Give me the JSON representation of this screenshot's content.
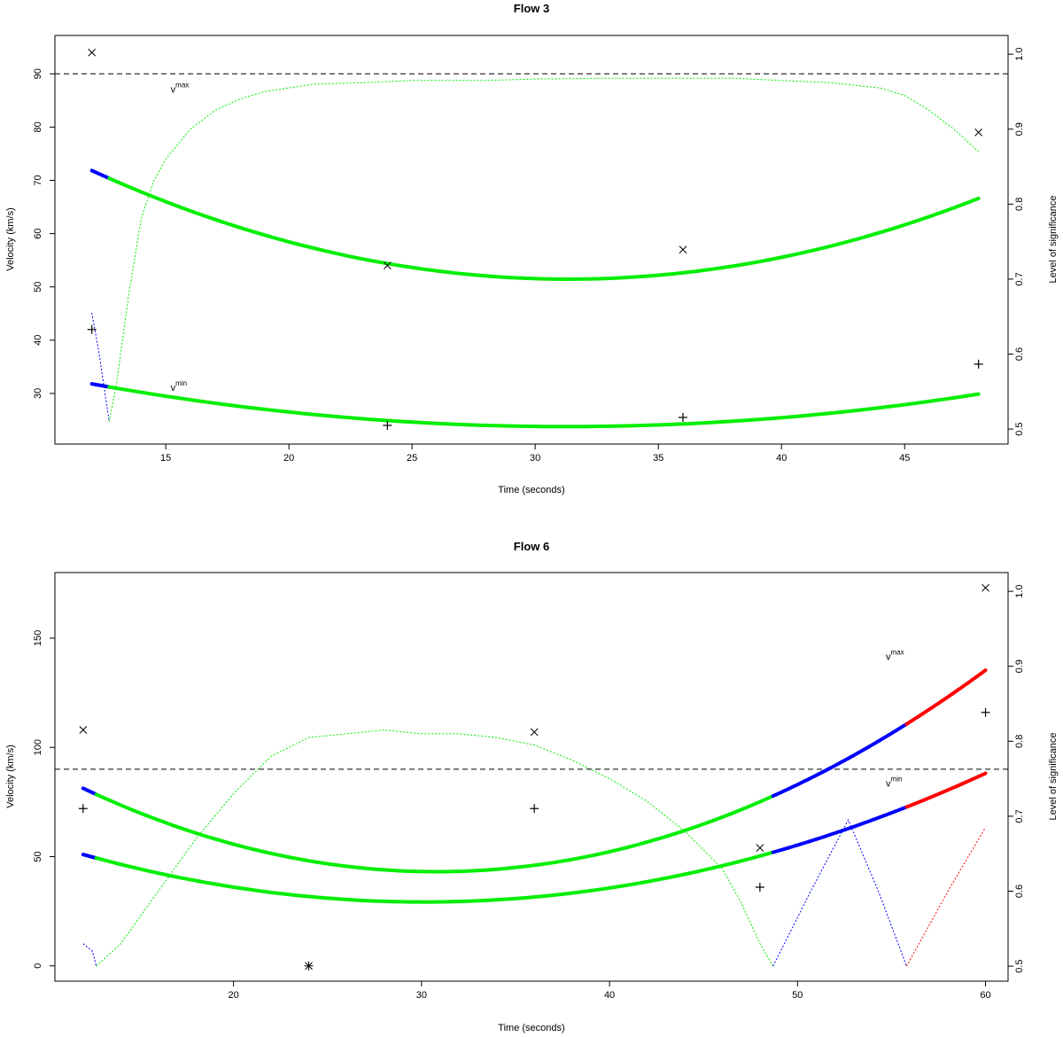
{
  "chart_data": [
    {
      "type": "line",
      "title": "Flow 3",
      "xlabel": "Time (seconds)",
      "ylabel": "Velocity (km/s)",
      "y2label": "Level of significance",
      "xlim": [
        10.5,
        49.2
      ],
      "ylim": [
        20.5,
        97.2
      ],
      "y2lim": [
        0.48,
        1.025
      ],
      "xticks": [
        15,
        20,
        25,
        30,
        35,
        40,
        45
      ],
      "yticks": [
        30,
        40,
        50,
        60,
        70,
        80,
        90
      ],
      "y2ticks": [
        0.5,
        0.6,
        0.7,
        0.8,
        0.9,
        1.0
      ],
      "y2ticklabels": [
        "0.5",
        "0.6",
        "0.7",
        "0.8",
        "0.9",
        "1.0"
      ],
      "hline": 90,
      "grid": false,
      "annotations": [
        {
          "base": "v",
          "sup": "max",
          "x": 15.2,
          "y": 86.5
        },
        {
          "base": "v",
          "sup": "min",
          "x": 15.2,
          "y": 30.5
        }
      ],
      "series": [
        {
          "kind": "vmax",
          "coef": [
            0.05455,
            -3.4182,
            105.0
          ],
          "x_range": [
            12,
            48
          ],
          "width": 4,
          "segments": [
            {
              "from": 12,
              "to": 12.7,
              "color": "#0000ff"
            },
            {
              "from": 12.7,
              "to": 48,
              "color": "#00ee00"
            }
          ]
        },
        {
          "kind": "vmin",
          "coef": [
            0.02168,
            -1.3539,
            44.92
          ],
          "x_range": [
            12,
            48
          ],
          "width": 4,
          "segments": [
            {
              "from": 12,
              "to": 12.7,
              "color": "#0000ff"
            },
            {
              "from": 12.7,
              "to": 48,
              "color": "#00ee00"
            }
          ]
        },
        {
          "kind": "significance",
          "style": "dotted",
          "axis": "right",
          "segments": [
            {
              "color": "#0000ff",
              "points": [
                [
                  12,
                  0.655
                ],
                [
                  12.3,
                  0.6
                ],
                [
                  12.7,
                  0.51
                ]
              ]
            },
            {
              "color": "#00ee00",
              "points": [
                [
                  12.7,
                  0.51
                ],
                [
                  13,
                  0.56
                ],
                [
                  13.5,
                  0.68
                ],
                [
                  14,
                  0.78
                ],
                [
                  14.5,
                  0.83
                ],
                [
                  15,
                  0.86
                ],
                [
                  16,
                  0.9
                ],
                [
                  17,
                  0.925
                ],
                [
                  18,
                  0.94
                ],
                [
                  19,
                  0.95
                ],
                [
                  20,
                  0.955
                ],
                [
                  21,
                  0.96
                ],
                [
                  23,
                  0.962
                ],
                [
                  25,
                  0.965
                ],
                [
                  28,
                  0.965
                ],
                [
                  30,
                  0.967
                ],
                [
                  33,
                  0.968
                ],
                [
                  36,
                  0.968
                ],
                [
                  38,
                  0.968
                ],
                [
                  40,
                  0.965
                ],
                [
                  42,
                  0.962
                ],
                [
                  44,
                  0.955
                ],
                [
                  45,
                  0.945
                ],
                [
                  46,
                  0.925
                ],
                [
                  47,
                  0.9
                ],
                [
                  48,
                  0.87
                ]
              ]
            }
          ]
        }
      ],
      "points": [
        {
          "marker": "x",
          "x": 12,
          "y": 94
        },
        {
          "marker": "x",
          "x": 24,
          "y": 54
        },
        {
          "marker": "x",
          "x": 36,
          "y": 57
        },
        {
          "marker": "x",
          "x": 48,
          "y": 79
        },
        {
          "marker": "+",
          "x": 12,
          "y": 42
        },
        {
          "marker": "+",
          "x": 24,
          "y": 24
        },
        {
          "marker": "+",
          "x": 36,
          "y": 25.5
        },
        {
          "marker": "+",
          "x": 48,
          "y": 35.5
        }
      ]
    },
    {
      "type": "line",
      "title": "Flow 6",
      "xlabel": "Time (seconds)",
      "ylabel": "Velocity (km/s)",
      "y2label": "Level of significance",
      "xlim": [
        10.5,
        61.2
      ],
      "ylim": [
        -7,
        180
      ],
      "y2lim": [
        0.48,
        1.025
      ],
      "xticks": [
        20,
        30,
        40,
        50,
        60
      ],
      "yticks": [
        0,
        50,
        100,
        150
      ],
      "y2ticks": [
        0.5,
        0.6,
        0.7,
        0.8,
        0.9,
        1.0
      ],
      "y2ticklabels": [
        "0.5",
        "0.6",
        "0.7",
        "0.8",
        "0.9",
        "1.0"
      ],
      "hline": 90,
      "grid": false,
      "annotations": [
        {
          "base": "v",
          "sup": "max",
          "x": 54.7,
          "y": 140
        },
        {
          "base": "v",
          "sup": "min",
          "x": 54.7,
          "y": 82
        }
      ],
      "series": [
        {
          "kind": "vmax",
          "coef": [
            0.1081,
            -6.6577,
            145.6
          ],
          "x_range": [
            12,
            60
          ],
          "width": 4,
          "segments": [
            {
              "from": 12,
              "to": 12.7,
              "color": "#0000ff"
            },
            {
              "from": 12.7,
              "to": 48.7,
              "color": "#00ee00"
            },
            {
              "from": 48.7,
              "to": 55.8,
              "color": "#0000ff"
            },
            {
              "from": 55.8,
              "to": 60,
              "color": "#ff0000"
            }
          ]
        },
        {
          "kind": "vmin",
          "coef": [
            0.06604,
            -3.9815,
            89.25
          ],
          "x_range": [
            12,
            60
          ],
          "width": 4,
          "segments": [
            {
              "from": 12,
              "to": 12.7,
              "color": "#0000ff"
            },
            {
              "from": 12.7,
              "to": 48.7,
              "color": "#00ee00"
            },
            {
              "from": 48.7,
              "to": 55.8,
              "color": "#0000ff"
            },
            {
              "from": 55.8,
              "to": 60,
              "color": "#ff0000"
            }
          ]
        },
        {
          "kind": "significance",
          "style": "dotted",
          "axis": "right",
          "segments": [
            {
              "color": "#0000ff",
              "points": [
                [
                  12,
                  0.53
                ],
                [
                  12.5,
                  0.52
                ],
                [
                  12.7,
                  0.5
                ]
              ]
            },
            {
              "color": "#00ee00",
              "points": [
                [
                  12.7,
                  0.5
                ],
                [
                  14,
                  0.53
                ],
                [
                  16,
                  0.6
                ],
                [
                  18,
                  0.67
                ],
                [
                  20,
                  0.73
                ],
                [
                  22,
                  0.78
                ],
                [
                  24,
                  0.805
                ],
                [
                  26,
                  0.81
                ],
                [
                  28,
                  0.815
                ],
                [
                  30,
                  0.81
                ],
                [
                  32,
                  0.81
                ],
                [
                  34,
                  0.805
                ],
                [
                  36,
                  0.795
                ],
                [
                  38,
                  0.775
                ],
                [
                  40,
                  0.75
                ],
                [
                  42,
                  0.72
                ],
                [
                  44,
                  0.68
                ],
                [
                  46,
                  0.63
                ],
                [
                  47,
                  0.585
                ],
                [
                  48,
                  0.53
                ],
                [
                  48.7,
                  0.5
                ]
              ]
            },
            {
              "color": "#0000ff",
              "points": [
                [
                  48.7,
                  0.5
                ],
                [
                  50.7,
                  0.6
                ],
                [
                  52.7,
                  0.695
                ],
                [
                  54.3,
                  0.6
                ],
                [
                  55.8,
                  0.5
                ]
              ]
            },
            {
              "color": "#ff0000",
              "points": [
                [
                  55.8,
                  0.5
                ],
                [
                  58,
                  0.6
                ],
                [
                  60,
                  0.685
                ]
              ]
            }
          ]
        }
      ],
      "points": [
        {
          "marker": "x",
          "x": 12,
          "y": 108
        },
        {
          "marker": "x",
          "x": 36,
          "y": 107
        },
        {
          "marker": "x",
          "x": 48,
          "y": 54
        },
        {
          "marker": "x",
          "x": 60,
          "y": 173
        },
        {
          "marker": "+",
          "x": 12,
          "y": 72
        },
        {
          "marker": "+",
          "x": 36,
          "y": 72
        },
        {
          "marker": "+",
          "x": 48,
          "y": 36
        },
        {
          "marker": "+",
          "x": 60,
          "y": 116
        },
        {
          "marker": "*",
          "x": 24,
          "y": 0
        }
      ]
    }
  ]
}
